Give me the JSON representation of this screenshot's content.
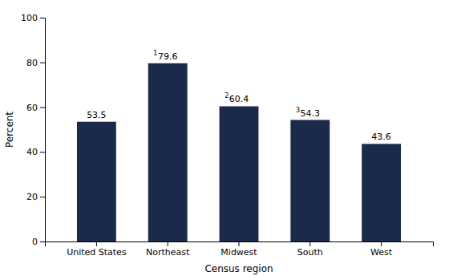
{
  "chart_data": {
    "type": "bar",
    "categories": [
      "United States",
      "Northeast",
      "Midwest",
      "South",
      "West"
    ],
    "values": [
      53.5,
      79.6,
      60.4,
      54.3,
      43.6
    ],
    "color": "#1b2a4a",
    "xlabel": "Census region",
    "ylabel": "Percent",
    "ylim": [
      0,
      100
    ],
    "yticks": [
      0,
      20,
      40,
      60,
      80,
      100
    ],
    "grid": false,
    "data_labels": true,
    "annotations": [
      {
        "text": "1",
        "category": "Northeast"
      },
      {
        "text": "2",
        "category": "Midwest"
      },
      {
        "text": "3",
        "category": "South"
      }
    ]
  }
}
